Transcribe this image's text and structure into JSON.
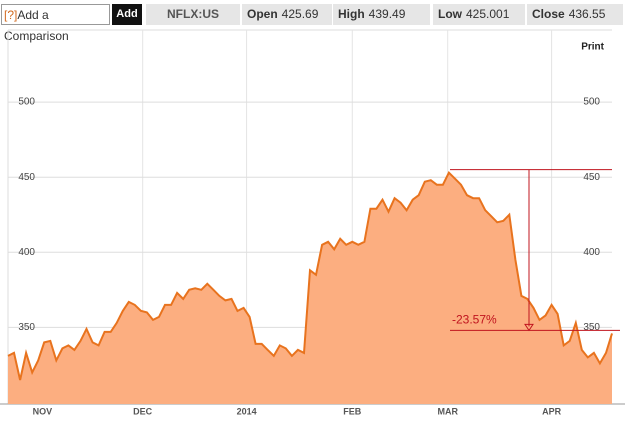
{
  "toolbar": {
    "help": "[?]",
    "compare": "Add a Comparison",
    "add": "Add",
    "symbol": "NFLX:US",
    "quote": [
      {
        "label": "Open",
        "value": "425.69"
      },
      {
        "label": "High",
        "value": "439.49"
      },
      {
        "label": "Low",
        "value": "425.001"
      },
      {
        "label": "Close",
        "value": "436.55"
      }
    ],
    "print": "Print"
  },
  "chart_data": {
    "type": "area",
    "color": "#e8731e",
    "fill": "#fcae80",
    "values": [
      331,
      333,
      315,
      333,
      320,
      328,
      340,
      341,
      328,
      336,
      338,
      335,
      341,
      349,
      340,
      338,
      347,
      347,
      353,
      361,
      367,
      365,
      361,
      360,
      355,
      357,
      365,
      365,
      373,
      369,
      375,
      376,
      375,
      379,
      375,
      371,
      368,
      369,
      361,
      363,
      357,
      339,
      339,
      335,
      331,
      338,
      336,
      331,
      335,
      333,
      388,
      385,
      405,
      407,
      402,
      409,
      405,
      407,
      405,
      407,
      429,
      429,
      435,
      427,
      436,
      433,
      428,
      435,
      438,
      447,
      448,
      445,
      445,
      453,
      449,
      445,
      438,
      436,
      436,
      428,
      424,
      420,
      421,
      425,
      395,
      371,
      369,
      363,
      355,
      358,
      365,
      359,
      338,
      341,
      353,
      335,
      330,
      333,
      326,
      333,
      346
    ],
    "xlim": [
      0,
      100
    ],
    "xticks": [
      {
        "value": 5.7,
        "label": "NOV"
      },
      {
        "value": 22.3,
        "label": "DEC"
      },
      {
        "value": 39.5,
        "label": "2014"
      },
      {
        "value": 57,
        "label": "FEB"
      },
      {
        "value": 72.8,
        "label": "MAR"
      },
      {
        "value": 90,
        "label": "APR"
      }
    ],
    "ylim": [
      299,
      548
    ],
    "yticks": [
      350,
      400,
      450,
      500
    ],
    "grid": true,
    "annotation": {
      "text": "-23.57%",
      "high": 455,
      "low": 348,
      "color": "#c0141e"
    }
  }
}
